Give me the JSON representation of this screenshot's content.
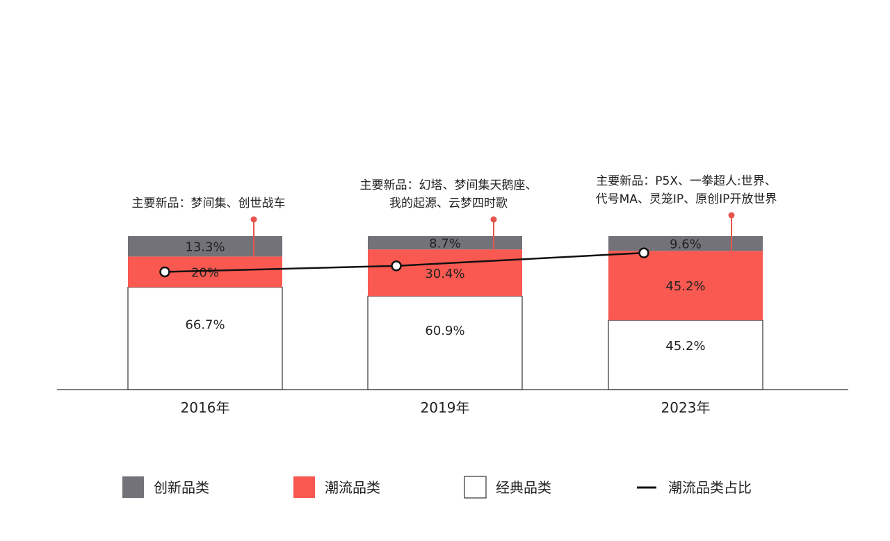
{
  "chart_data": {
    "type": "bar",
    "stacked": true,
    "categories": [
      "2016年",
      "2019年",
      "2023年"
    ],
    "series": [
      {
        "name": "经典品类",
        "values": [
          66.7,
          60.9,
          45.2
        ],
        "labels": [
          "66.7%",
          "60.9%",
          "45.2%"
        ],
        "color": "#ffffff"
      },
      {
        "name": "潮流品类",
        "values": [
          20,
          30.4,
          45.2
        ],
        "labels": [
          "20%",
          "30.4%",
          "45.2%"
        ],
        "color": "#f95950"
      },
      {
        "name": "创新品类",
        "values": [
          13.3,
          8.7,
          9.6
        ],
        "labels": [
          "13.3%",
          "8.7%",
          "9.6%"
        ],
        "color": "#737279"
      }
    ],
    "line_series": {
      "name": "潮流品类占比",
      "values": [
        20,
        30.4,
        45.2
      ],
      "color": "#111111"
    },
    "annotations": [
      {
        "category": "2016年",
        "lines": [
          "主要新品：梦间集、创世战车"
        ]
      },
      {
        "category": "2019年",
        "lines": [
          "主要新品：幻塔、梦间集天鹅座、",
          "我的起源、云梦四时歌"
        ]
      },
      {
        "category": "2023年",
        "lines": [
          "主要新品：P5X、一拳超人:世界、",
          "代号MA、灵笼IP、原创IP开放世界"
        ]
      }
    ],
    "legend": {
      "placement": "bottom",
      "items": [
        {
          "label": "创新品类",
          "kind": "box",
          "color": "#737279"
        },
        {
          "label": "潮流品类",
          "kind": "box",
          "color": "#f95950"
        },
        {
          "label": "经典品类",
          "kind": "box",
          "color": "#ffffff"
        },
        {
          "label": "潮流品类占比",
          "kind": "line",
          "color": "#111111"
        }
      ]
    },
    "title": "",
    "xlabel": "",
    "ylabel": "",
    "grid": false,
    "accent_color": "#e8544c"
  }
}
